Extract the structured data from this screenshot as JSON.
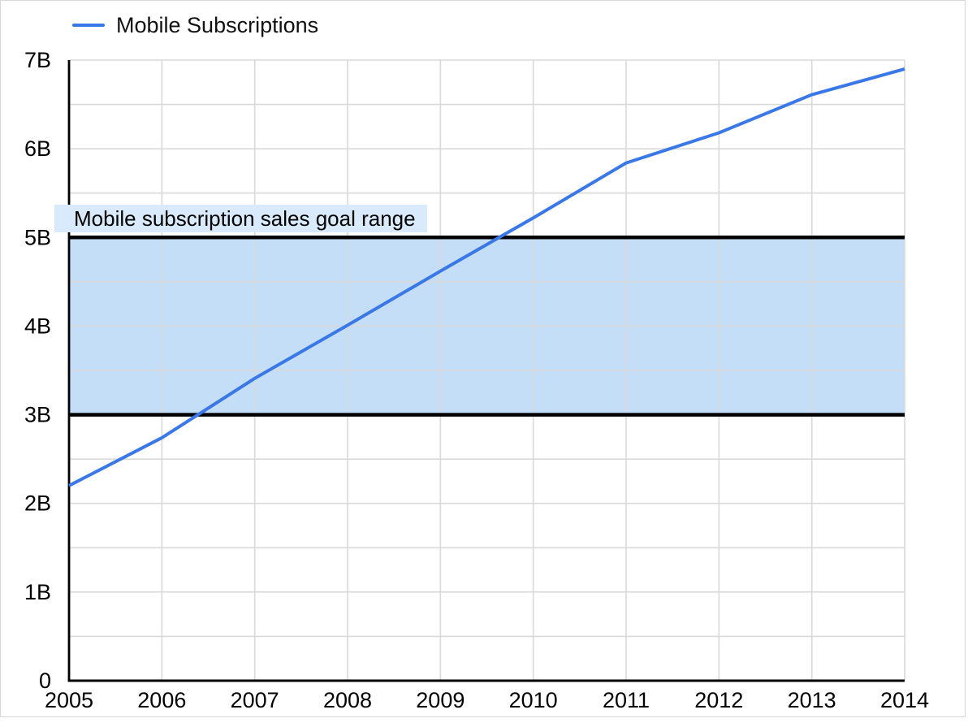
{
  "frame": {
    "border_color": "#d6d6d6",
    "background": "#ffffff"
  },
  "legend": {
    "label": "Mobile Subscriptions"
  },
  "chart_data": {
    "type": "line",
    "title": "",
    "xlabel": "",
    "ylabel": "",
    "x": [
      2005,
      2006,
      2007,
      2008,
      2009,
      2010,
      2011,
      2012,
      2013,
      2014
    ],
    "x_tick_labels": [
      "2005",
      "2006",
      "2007",
      "2008",
      "2009",
      "2010",
      "2011",
      "2012",
      "2013",
      "2014"
    ],
    "series": [
      {
        "name": "Mobile Subscriptions",
        "color": "#3a78e7",
        "values": [
          2.2,
          2.74,
          3.41,
          4.01,
          4.62,
          5.22,
          5.84,
          6.18,
          6.61,
          6.9
        ]
      }
    ],
    "xlim": [
      2005,
      2014
    ],
    "ylim": [
      0,
      7
    ],
    "y_tick_values": [
      0,
      1,
      2,
      3,
      4,
      5,
      6,
      7
    ],
    "y_tick_labels": [
      "0",
      "1B",
      "2B",
      "3B",
      "4B",
      "5B",
      "6B",
      "7B"
    ],
    "y_minor_step": 0.5,
    "grid": true,
    "gridline_color": "#d9d9d9",
    "axis_color": "#000000",
    "tick_label_color": "#000000",
    "legend_position": "top-left",
    "point_markers": false,
    "reference_band": {
      "label": "Mobile subscription sales goal range",
      "from": 3,
      "to": 5,
      "fill": "#c4def8",
      "border_color": "#000000",
      "label_background": "#d9eafc",
      "label_text_color": "#000000"
    }
  }
}
